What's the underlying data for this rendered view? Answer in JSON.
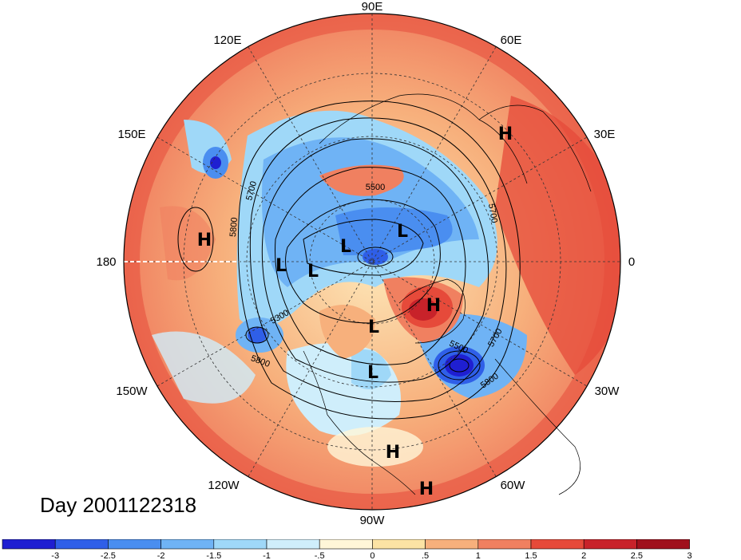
{
  "caption": "Day 2001122318",
  "longitude_labels": {
    "e90": "90E",
    "e120": "120E",
    "e60": "60E",
    "e150": "150E",
    "e30": "30E",
    "w180": "180",
    "zero": "0",
    "w150": "150W",
    "w30": "30W",
    "w120": "120W",
    "w60": "60W",
    "w90": "90W"
  },
  "contour_labels": {
    "c5500a": "5500",
    "c5700a": "5700",
    "c5800a": "5800",
    "c5700b": "5700",
    "c5300": "5300",
    "c5500b": "5500",
    "c5700c": "5700",
    "c5800b": "5800",
    "c5800c": "5800"
  },
  "pressure_centers": [
    {
      "id": "h-east-europe",
      "label": "H"
    },
    {
      "id": "h-pacific",
      "label": "H"
    },
    {
      "id": "l-siberia",
      "label": "L"
    },
    {
      "id": "l-arctic",
      "label": "L"
    },
    {
      "id": "l-bering",
      "label": "L"
    },
    {
      "id": "l-alaska",
      "label": "L"
    },
    {
      "id": "h-greenland",
      "label": "H"
    },
    {
      "id": "l-canada",
      "label": "L"
    },
    {
      "id": "l-great-lakes",
      "label": "L"
    },
    {
      "id": "h-gulf",
      "label": "H"
    },
    {
      "id": "h-caribbean",
      "label": "H"
    }
  ],
  "colorbar": {
    "colors": [
      "#1f1fd1",
      "#2f5fe8",
      "#4a8ef0",
      "#6fb3f5",
      "#9fd8f8",
      "#cfeefb",
      "#fff6d8",
      "#fce3a4",
      "#f7b07c",
      "#f08060",
      "#e64a3a",
      "#c8222a",
      "#a0101c"
    ],
    "ticks": [
      "-3",
      "-2.5",
      "-2",
      "-1.5",
      "-1",
      "-.5",
      "0",
      ".5",
      "1",
      "1.5",
      "2",
      "2.5",
      "3"
    ]
  }
}
